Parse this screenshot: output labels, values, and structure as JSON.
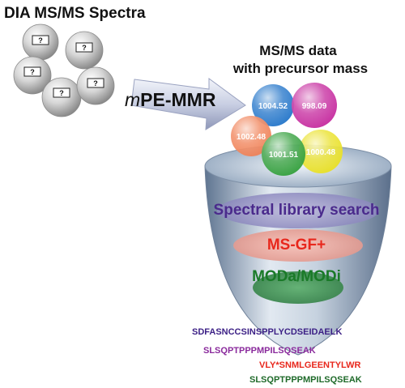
{
  "input": {
    "title": "DIA MS/MS Spectra",
    "spectra_count": 5,
    "unknown_marker": "?"
  },
  "method": {
    "prefix": "m",
    "name": "PE-MMR"
  },
  "output": {
    "title_line1": "MS/MS data",
    "title_line2": "with precursor mass",
    "spheres": [
      {
        "label": "1004.52",
        "color": "#1e72c8"
      },
      {
        "label": "998.09",
        "color": "#c4259c"
      },
      {
        "label": "1002.48",
        "color": "#f07e52"
      },
      {
        "label": "1000.48",
        "color": "#e9e020"
      },
      {
        "label": "1001.51",
        "color": "#2f9e38"
      }
    ]
  },
  "funnel": {
    "stages": [
      {
        "label": "Spectral library search",
        "color": "#4a2a8c"
      },
      {
        "label": "MS-GF+",
        "color": "#e8271c"
      },
      {
        "label": "MODa/MODi",
        "color": "#1a7a28"
      }
    ]
  },
  "peptides": [
    {
      "sequence": "SDFASNCCSINSPPLYCDSEIDAELK",
      "color": "#3b1f85"
    },
    {
      "sequence": "SLSQPTPPPMPILSQSEAK",
      "color": "#8a2a9c"
    },
    {
      "sequence": "VLY*SNMLGEENTYLWR",
      "color": "#e8271c"
    },
    {
      "sequence": "SLSQPTPPPMPILSQSEAK",
      "color": "#1f6a2a"
    }
  ]
}
